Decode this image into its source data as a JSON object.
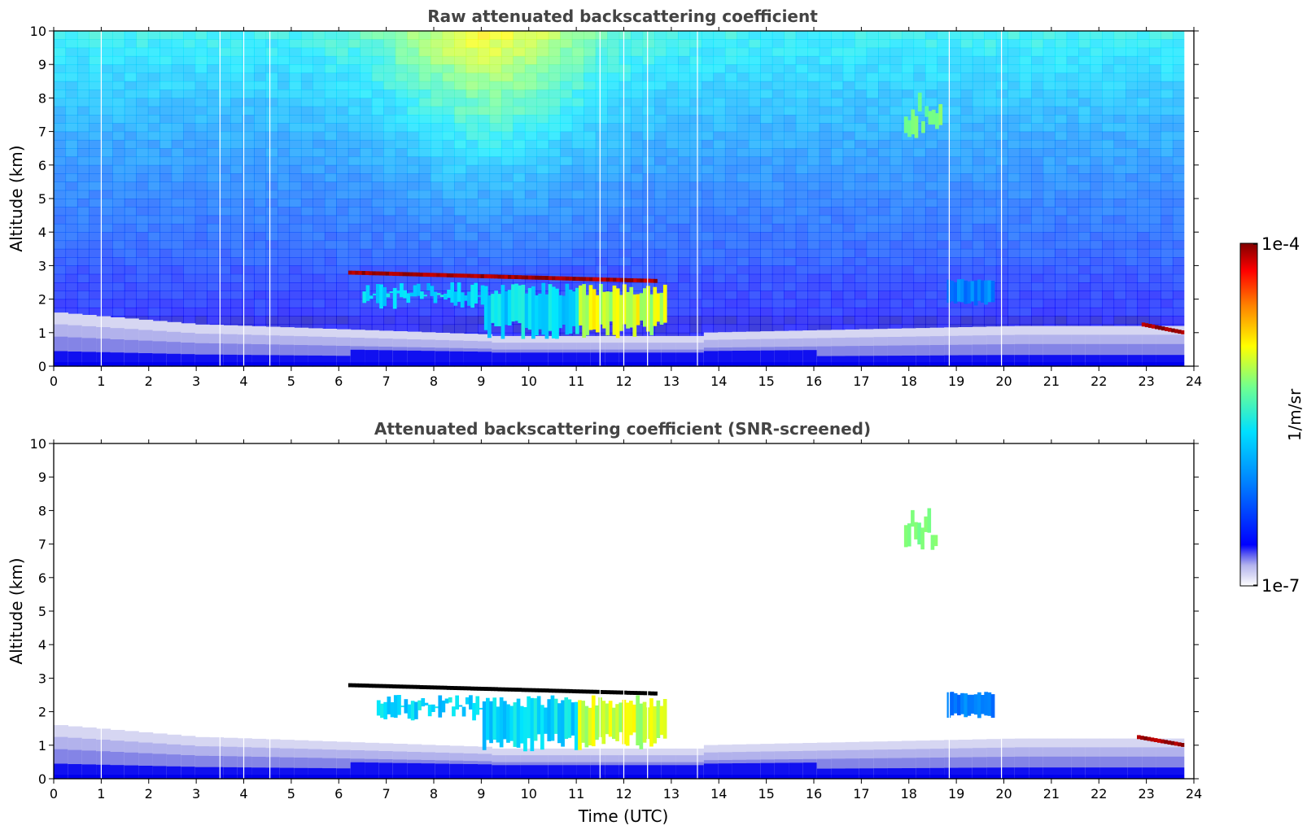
{
  "chart_data": [
    {
      "type": "heatmap",
      "title": "Raw attenuated backscattering coefficient",
      "xlabel": "",
      "ylabel": "Altitude (km)",
      "xlim": [
        0,
        24
      ],
      "ylim": [
        0,
        10
      ],
      "xticks": [
        "0",
        "1",
        "2",
        "3",
        "4",
        "5",
        "6",
        "7",
        "8",
        "9",
        "10",
        "11",
        "12",
        "13",
        "14",
        "15",
        "16",
        "17",
        "18",
        "19",
        "20",
        "21",
        "22",
        "23",
        "24"
      ],
      "yticks": [
        "0",
        "1",
        "2",
        "3",
        "4",
        "5",
        "6",
        "7",
        "8",
        "9",
        "10"
      ],
      "grid": false,
      "colorscale": "jet",
      "colorbar": {
        "label": "1/m/sr",
        "min": "1e-7",
        "max": "1e-4",
        "scale": "log"
      },
      "data_gaps_utc": [
        1.0,
        3.5,
        4.0,
        4.55,
        11.5,
        12.0,
        12.5,
        13.55,
        18.85,
        19.95
      ],
      "features": [
        {
          "feature": "cloud layer",
          "start": 6.2,
          "end": 12.7,
          "base_km": 2.6,
          "top_km": 2.85,
          "intensity": "1e-4"
        },
        {
          "feature": "precipitation below cloud",
          "start": 6.5,
          "end": 12.9,
          "base_km": 0.8,
          "top_km": 2.5,
          "intensity": "mid"
        },
        {
          "feature": "cloud layer",
          "start": 18.8,
          "end": 19.8,
          "base_km": 1.8,
          "top_km": 2.6,
          "intensity": "mid"
        },
        {
          "feature": "cloud layer",
          "start": 22.9,
          "end": 23.8,
          "base_km": 1.0,
          "top_km": 1.3,
          "intensity": "high"
        },
        {
          "feature": "cirrus",
          "start": 17.9,
          "end": 18.7,
          "base_km": 6.8,
          "top_km": 8.5,
          "intensity": "mid"
        },
        {
          "feature": "boundary layer aerosol",
          "start": 0,
          "end": 23.8,
          "base_km": 0,
          "top_km": 1.6,
          "intensity": "low"
        }
      ]
    },
    {
      "type": "heatmap",
      "title": "Attenuated backscattering coefficient (SNR-screened)",
      "xlabel": "Time (UTC)",
      "ylabel": "Altitude (km)",
      "xlim": [
        0,
        24
      ],
      "ylim": [
        0,
        10
      ],
      "xticks": [
        "0",
        "1",
        "2",
        "3",
        "4",
        "5",
        "6",
        "7",
        "8",
        "9",
        "10",
        "11",
        "12",
        "13",
        "14",
        "15",
        "16",
        "17",
        "18",
        "19",
        "20",
        "21",
        "22",
        "23",
        "24"
      ],
      "yticks": [
        "0",
        "1",
        "2",
        "3",
        "4",
        "5",
        "6",
        "7",
        "8",
        "9",
        "10"
      ],
      "grid": false,
      "colorscale": "jet",
      "colorbar": {
        "label": "1/m/sr",
        "min": "1e-7",
        "max": "1e-4",
        "scale": "log"
      },
      "data_gaps_utc": [
        1.0,
        3.5,
        4.0,
        4.55,
        11.5,
        12.0,
        12.5,
        13.55,
        18.85,
        19.95
      ],
      "features": [
        {
          "feature": "cloud layer",
          "start": 6.2,
          "end": 12.7,
          "base_km": 2.6,
          "top_km": 2.85,
          "intensity": "saturated"
        },
        {
          "feature": "precipitation below cloud",
          "start": 6.8,
          "end": 12.9,
          "base_km": 0.8,
          "top_km": 2.5,
          "intensity": "mid"
        },
        {
          "feature": "cloud layer",
          "start": 18.8,
          "end": 19.8,
          "base_km": 1.8,
          "top_km": 2.6,
          "intensity": "mid"
        },
        {
          "feature": "cloud layer",
          "start": 22.8,
          "end": 23.8,
          "base_km": 1.0,
          "top_km": 1.3,
          "intensity": "high"
        },
        {
          "feature": "cirrus",
          "start": 17.9,
          "end": 18.6,
          "base_km": 6.8,
          "top_km": 8.5,
          "intensity": "mid"
        },
        {
          "feature": "boundary layer aerosol",
          "start": 0,
          "end": 23.8,
          "base_km": 0,
          "top_km": 1.6,
          "intensity": "low"
        }
      ]
    }
  ],
  "colorbar": {
    "label": "1/m/sr",
    "max_label": "1e-4",
    "min_label": "1e-7"
  },
  "colors": {
    "jet": [
      "#000080",
      "#0000ff",
      "#0080ff",
      "#00ffff",
      "#80ff80",
      "#ffff00",
      "#ff8000",
      "#ff0000",
      "#800000"
    ],
    "low_end": [
      "#ffffff",
      "#d8d8f4",
      "#b4b4ee",
      "#8c8ce8",
      "#5a5af0"
    ]
  }
}
